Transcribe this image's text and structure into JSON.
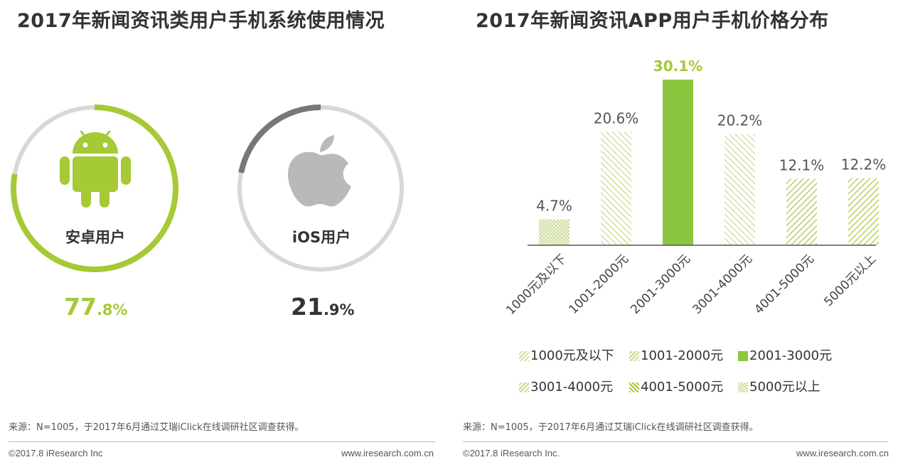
{
  "left_panel": {
    "title": "2017年新闻资讯类用户手机系统使用情况",
    "android": {
      "label": "安卓用户",
      "pct_int": "77",
      "pct_dec": ".8%",
      "share": 0.778,
      "icon": "android-icon",
      "color": "#a6c936"
    },
    "ios": {
      "label": "iOS用户",
      "pct_int": "21",
      "pct_dec": ".9%",
      "share": 0.219,
      "icon": "apple-icon",
      "color": "#777777"
    },
    "source": "来源：N=1005，于2017年6月通过艾瑞iClick在线调研社区调查获得。",
    "copyright": "©2017.8 iResearch Inc",
    "url": "www.iresearch.com.cn"
  },
  "right_panel": {
    "title": "2017年新闻资讯APP用户手机价格分布",
    "source": "来源：N=1005，于2017年6月通过艾瑞iClick在线调研社区调查获得。",
    "copyright": "©2017.8 iResearch Inc.",
    "url": "www.iresearch.com.cn",
    "legend": [
      "1000元及以下",
      "1001-2000元",
      "2001-3000元",
      "3001-4000元",
      "4001-5000元",
      "5000元以上"
    ]
  },
  "chart_data": [
    {
      "type": "pie",
      "title": "2017年新闻资讯类用户手机系统使用情况",
      "categories": [
        "安卓用户",
        "iOS用户"
      ],
      "values": [
        77.8,
        21.9
      ],
      "unit": "%"
    },
    {
      "type": "bar",
      "title": "2017年新闻资讯APP用户手机价格分布",
      "categories": [
        "1000元及以下",
        "1001-2000元",
        "2001-3000元",
        "3001-4000元",
        "4001-5000元",
        "5000元以上"
      ],
      "values": [
        4.7,
        20.6,
        30.1,
        20.2,
        12.1,
        12.2
      ],
      "labels": [
        "4.7%",
        "20.6%",
        "30.1%",
        "20.2%",
        "12.1%",
        "12.2%"
      ],
      "highlight_index": 2,
      "xlabel": "",
      "ylabel": "",
      "ylim": [
        0,
        30.1
      ],
      "legend_position": "bottom",
      "colors": {
        "highlight": "#8cc63f",
        "highlight_label": "#a6c936",
        "hatch": "#a6c936",
        "hatch_light": "#c8d98f"
      }
    }
  ]
}
